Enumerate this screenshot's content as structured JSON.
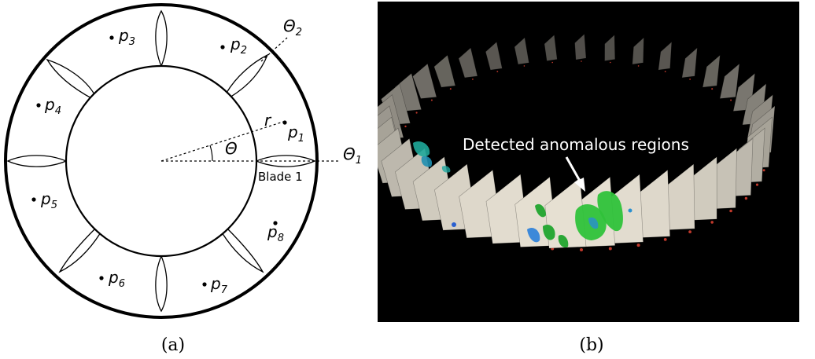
{
  "panel_a": {
    "points": [
      {
        "base": "p",
        "sub": "1"
      },
      {
        "base": "p",
        "sub": "2"
      },
      {
        "base": "p",
        "sub": "3"
      },
      {
        "base": "p",
        "sub": "4"
      },
      {
        "base": "p",
        "sub": "5"
      },
      {
        "base": "p",
        "sub": "6"
      },
      {
        "base": "p",
        "sub": "7"
      },
      {
        "base": "p",
        "sub": "8"
      }
    ],
    "theta1": {
      "base": "Θ",
      "sub": "1"
    },
    "theta2": {
      "base": "Θ",
      "sub": "2"
    },
    "theta": "Θ",
    "radius": "r",
    "blade_label": "Blade 1",
    "caption": "(a)"
  },
  "panel_b": {
    "annotation": "Detected anomalous regions",
    "caption": "(b)",
    "colors": {
      "background": "#000000",
      "blade": "#e6e0d2",
      "anomaly_green": "#2fc23a",
      "anomaly_blue": "#2a7fd9"
    }
  }
}
